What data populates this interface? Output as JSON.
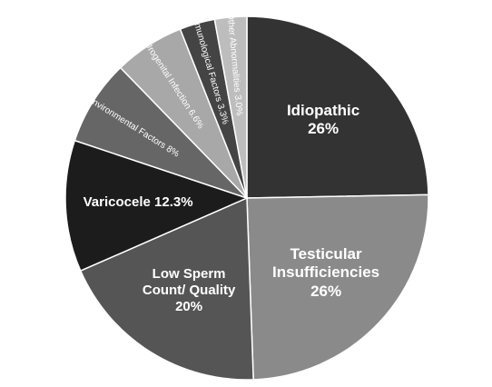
{
  "chart_data": {
    "type": "pie",
    "categories": [
      "Idiopathic",
      "Testicular Insufficiencies",
      "Low Sperm Count/ Quality",
      "Varicocele",
      "Environmental Factors",
      "Urogenital Infection",
      "Immunological Factors",
      "Other Abnormalities"
    ],
    "values": [
      26,
      26,
      20,
      12.3,
      8,
      6.6,
      3.3,
      3.0
    ],
    "value_labels": [
      "26%",
      "26%",
      "20%",
      "12.3%",
      "8%",
      "6.6%",
      "3.3%",
      "3.0%"
    ],
    "colors": [
      "#333333",
      "#8a8a8a",
      "#555555",
      "#1c1c1c",
      "#666666",
      "#a8a8a8",
      "#444444",
      "#bdbdbd"
    ]
  }
}
